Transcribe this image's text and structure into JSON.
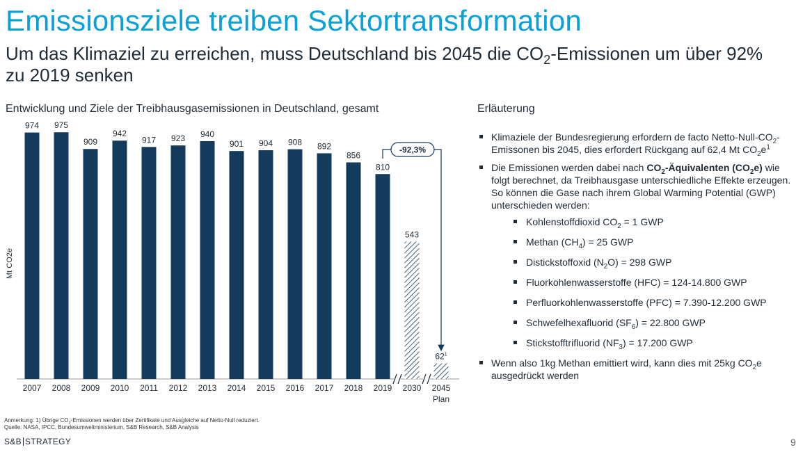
{
  "header": {
    "title": "Emissionsziele treiben Sektortransformation",
    "subtitle_pre": "Um das Klimaziel zu erreichen, muss Deutschland bis 2045 die CO",
    "subtitle_sub": "2",
    "subtitle_post": "-Emissionen um über 92% zu 2019 senken"
  },
  "chart_data": {
    "type": "bar",
    "title": "Entwicklung und Ziele der Treibhausgasemissionen in Deutschland, gesamt",
    "ylabel": "Mt CO2e",
    "ylim": [
      0,
      1000
    ],
    "categories": [
      "2007",
      "2008",
      "2009",
      "2010",
      "2011",
      "2012",
      "2013",
      "2014",
      "2015",
      "2016",
      "2017",
      "2018",
      "2019",
      "2030",
      "2045"
    ],
    "values": [
      974,
      975,
      909,
      942,
      917,
      923,
      940,
      901,
      904,
      908,
      892,
      856,
      810,
      543,
      62
    ],
    "value_labels": [
      "974",
      "975",
      "909",
      "942",
      "917",
      "923",
      "940",
      "901",
      "904",
      "908",
      "892",
      "856",
      "810",
      "543",
      "62"
    ],
    "value_label_suffix_2045": "1",
    "planned_categories": [
      "2030",
      "2045"
    ],
    "plan_label": "Plan",
    "change_annotation": "-92,3%",
    "colors": {
      "actual": "#143a5c",
      "planned_hatch": "#143a5c",
      "annotation": "#143a5c"
    }
  },
  "explanation": {
    "title": "Erläuterung",
    "bullet1": {
      "pre": "Klimaziele der Bundesregierung erfordern de facto Netto-Null-CO",
      "sub": "2",
      "mid": "-Emissonen bis 2045, dies erfordert Rückgang auf 62,4 Mt CO",
      "sub2": "2",
      "post": "e",
      "sup": "1"
    },
    "bullet2": {
      "pre": "Die Emissionen werden dabei nach ",
      "bold_a": "CO",
      "bold_sub": "2",
      "bold_b": "-Äquivalenten (CO",
      "bold_sub2": "2",
      "bold_c": "e)",
      "post": " wie folgt berechnet, da Treibhausgase unterschiedliche Effekte erzeugen. So können die Gase nach ihrem Global Warming Potential (GWP) unterschieden werden:"
    },
    "gases": [
      {
        "pre": "Kohlenstoffdioxid CO",
        "sub": "2",
        "post": " = 1 GWP"
      },
      {
        "pre": "Methan (CH",
        "sub": "4",
        "post": ") = 25 GWP"
      },
      {
        "pre": "Distickstoffoxid (N",
        "sub": "2",
        "post": "O) = 298 GWP"
      },
      {
        "pre": "Fluorkohlenwasserstoffe (HFC) = 124-14.800 GWP",
        "sub": "",
        "post": ""
      },
      {
        "pre": "Perfluorkohlenwasserstoffe (PFC) = 7.390-12.200 GWP",
        "sub": "",
        "post": ""
      },
      {
        "pre": "Schwefelhexafluorid (SF",
        "sub": "6",
        "post": ") = 22.800 GWP"
      },
      {
        "pre": "Stickstofftrifluorid (NF",
        "sub": "3",
        "post": ") = 17.200 GWP"
      }
    ],
    "bullet3": {
      "pre": "Wenn also 1kg Methan emittiert wird, kann dies mit 25kg CO",
      "sub": "2",
      "post": "e ausgedrückt werden"
    }
  },
  "footer": {
    "note_pre": "Anmerkung: 1) Übrige CO",
    "note_sub": "2",
    "note_post": "-Emissionen werden über Zertifikate und Ausgleiche auf Netto-Null reduziert.",
    "source": "Quelle: NASA, IPCC, Bundesumweltministerium, S&B Research, S&B Analysis",
    "logo_left": "S&B",
    "logo_right": "STRATEGY",
    "page_number": "9"
  }
}
